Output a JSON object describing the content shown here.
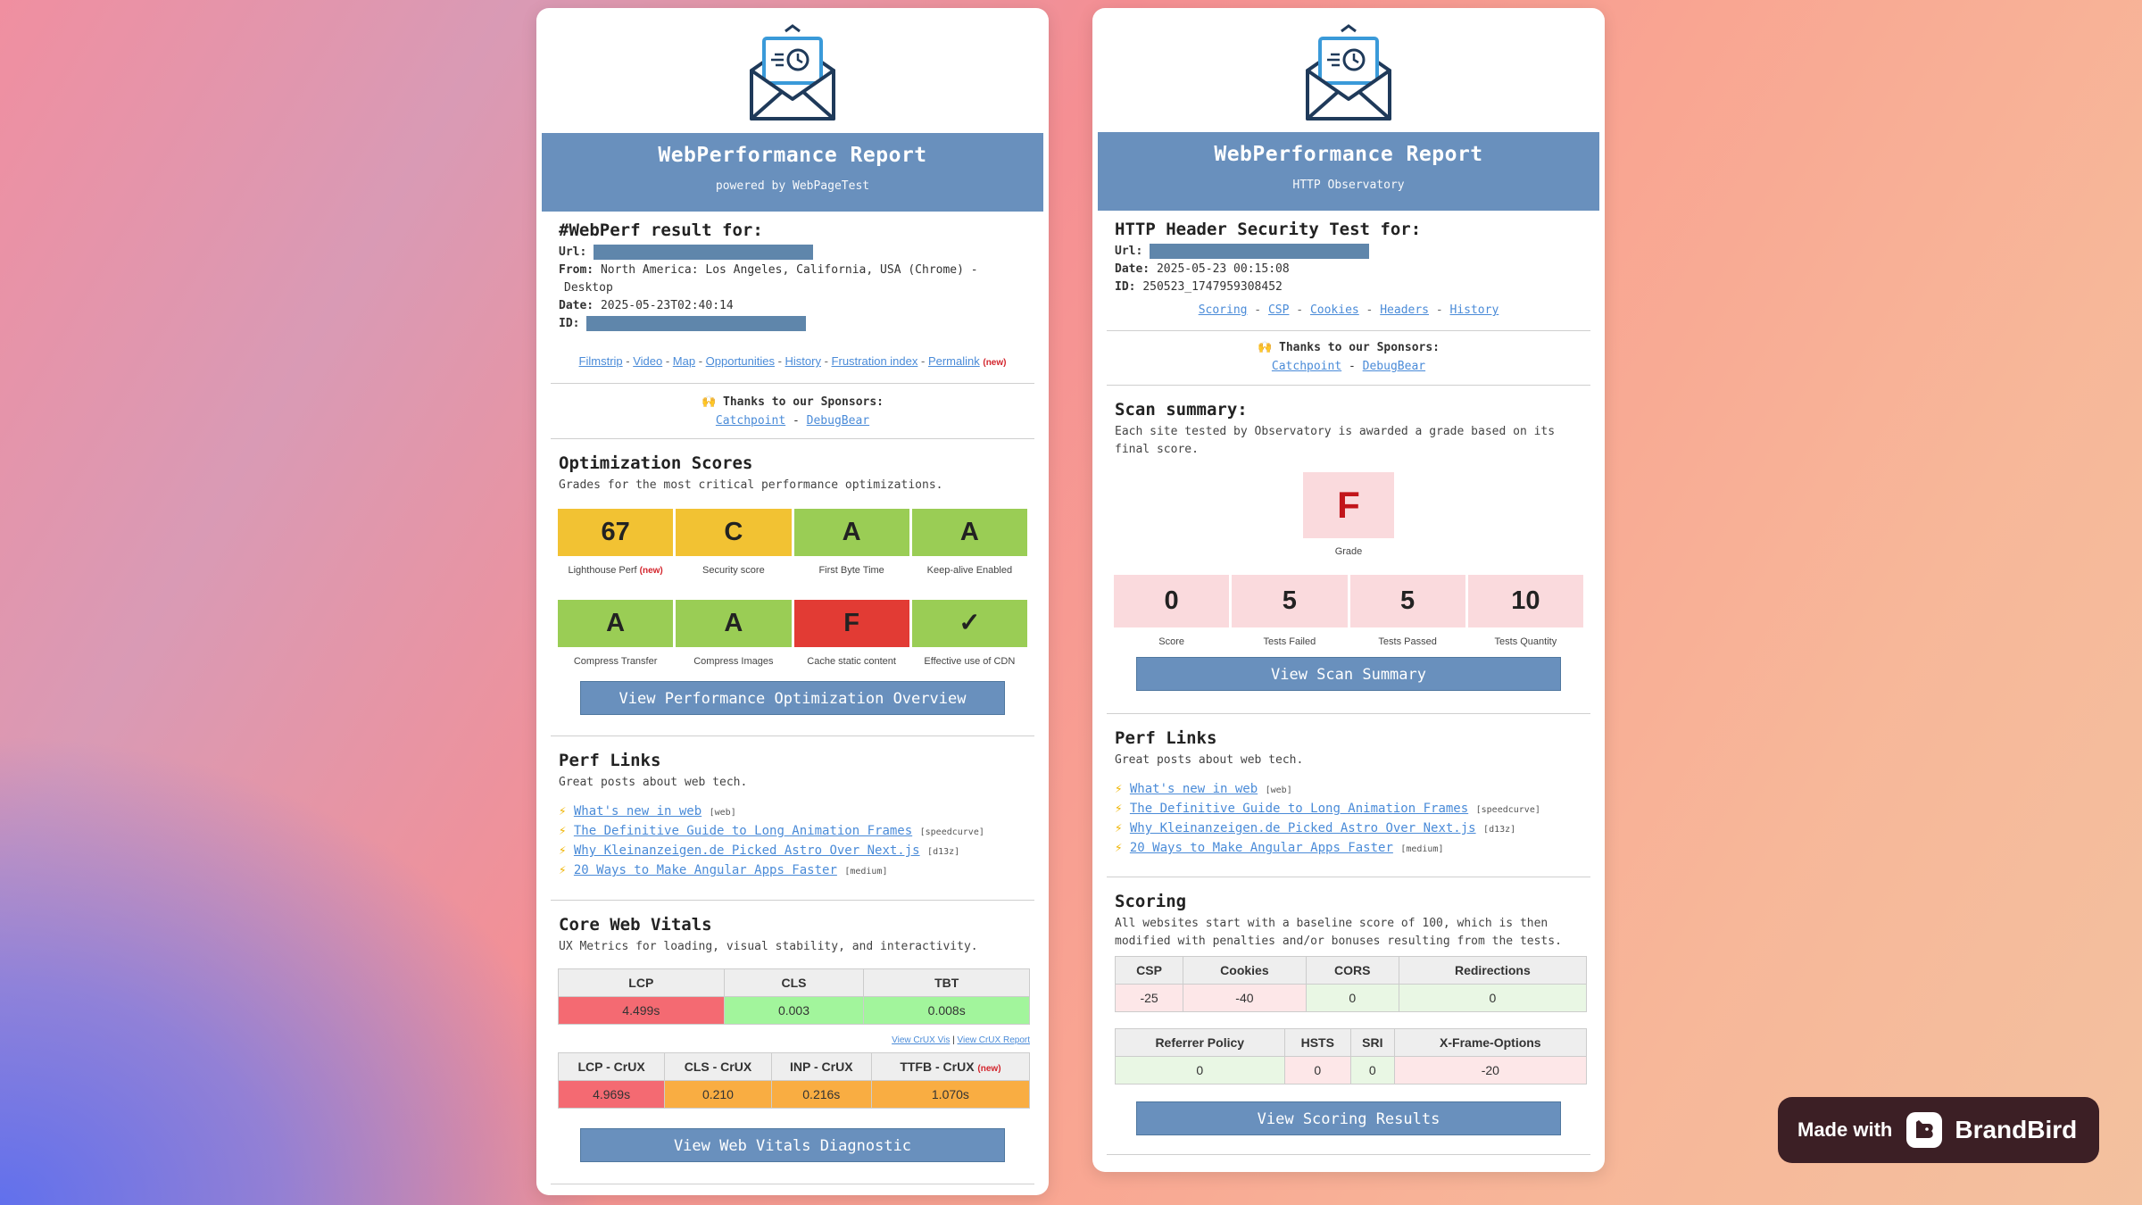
{
  "wpt": {
    "banner_title": "WebPerformance Report",
    "banner_sub": "powered by WebPageTest",
    "result_heading": "#WebPerf result for:",
    "url_label": "Url:",
    "from_label": "From:",
    "from_value": "North America: Los Angeles, California, USA (Chrome) -",
    "from_value2": "Desktop",
    "date_label": "Date:",
    "date_value": "2025-05-23T02:40:14",
    "id_label": "ID:",
    "links": [
      "Filmstrip",
      "Video",
      "Map",
      "Opportunities",
      "History",
      "Frustration index",
      "Permalink"
    ],
    "new_tag": "(new)",
    "sponsors_title": "🙌 Thanks to our Sponsors:",
    "sponsor1": "Catchpoint",
    "sponsor2": "DebugBear",
    "opt_heading": "Optimization Scores",
    "opt_sub": "Grades for the most critical performance optimizations.",
    "grades_row1": [
      {
        "value": "67",
        "label": "Lighthouse Perf",
        "color": "#f2c233"
      },
      {
        "value": "C",
        "label": "Security score",
        "color": "#f2c233"
      },
      {
        "value": "A",
        "label": "First Byte Time",
        "color": "#9acd55"
      },
      {
        "value": "A",
        "label": "Keep-alive Enabled",
        "color": "#9acd55"
      }
    ],
    "grades_row2": [
      {
        "value": "A",
        "label": "Compress Transfer",
        "color": "#9acd55"
      },
      {
        "value": "A",
        "label": "Compress Images",
        "color": "#9acd55"
      },
      {
        "value": "F",
        "label": "Cache static content",
        "color": "#e23b34"
      },
      {
        "value": "✓",
        "label": "Effective use of CDN",
        "color": "#9acd55"
      }
    ],
    "opt_button": "View Performance Optimization Overview",
    "perf_heading": "Perf Links",
    "perf_sub": "Great posts about web tech.",
    "perf_links": [
      {
        "title": "What's new in web",
        "tag": "[web]"
      },
      {
        "title": "The Definitive Guide to Long Animation Frames",
        "tag": "[speedcurve]"
      },
      {
        "title": "Why Kleinanzeigen.de Picked Astro Over Next.js",
        "tag": "[d13z]"
      },
      {
        "title": "20 Ways to Make Angular Apps Faster",
        "tag": "[medium]"
      }
    ],
    "cwv_heading": "Core Web Vitals",
    "cwv_sub": "UX Metrics for loading, visual stability, and interactivity.",
    "cwv_headers": [
      "LCP",
      "CLS",
      "TBT"
    ],
    "cwv_values": [
      "4.499s",
      "0.003",
      "0.008s"
    ],
    "crux_vis": "View CrUX Vis",
    "crux_report": "View CrUX Report",
    "crux_headers": [
      "LCP - CrUX",
      "CLS - CrUX",
      "INP - CrUX",
      "TTFB - CrUX"
    ],
    "crux_values": [
      "4.969s",
      "0.210",
      "0.216s",
      "1.070s"
    ],
    "cwv_button": "View Web Vitals Diagnostic"
  },
  "obs": {
    "banner_title": "WebPerformance Report",
    "banner_sub": "HTTP Observatory",
    "heading": "HTTP Header Security Test for:",
    "url_label": "Url:",
    "date_label": "Date:",
    "date_value": "2025-05-23 00:15:08",
    "id_label": "ID:",
    "id_value": "250523_1747959308452",
    "links": [
      "Scoring",
      "CSP",
      "Cookies",
      "Headers",
      "History"
    ],
    "sponsors_title": "🙌 Thanks to our Sponsors:",
    "sponsor1": "Catchpoint",
    "sponsor2": "DebugBear",
    "scan_heading": "Scan summary:",
    "scan_sub": "Each site tested by Observatory is awarded a grade based on its final score.",
    "grade_value": "F",
    "grade_label": "Grade",
    "stats": [
      {
        "value": "0",
        "label": "Score"
      },
      {
        "value": "5",
        "label": "Tests Failed"
      },
      {
        "value": "5",
        "label": "Tests Passed"
      },
      {
        "value": "10",
        "label": "Tests Quantity"
      }
    ],
    "scan_button": "View Scan Summary",
    "perf_heading": "Perf Links",
    "perf_sub": "Great posts about web tech.",
    "perf_links": [
      {
        "title": "What's new in web",
        "tag": "[web]"
      },
      {
        "title": "The Definitive Guide to Long Animation Frames",
        "tag": "[speedcurve]"
      },
      {
        "title": "Why Kleinanzeigen.de Picked Astro Over Next.js",
        "tag": "[d13z]"
      },
      {
        "title": "20 Ways to Make Angular Apps Faster",
        "tag": "[medium]"
      }
    ],
    "scoring_heading": "Scoring",
    "scoring_sub": "All websites start with a baseline score of 100, which is then modified with penalties and/or bonuses resulting from the tests.",
    "scoring_headers1": [
      "CSP",
      "Cookies",
      "CORS",
      "Redirections"
    ],
    "scoring_values1": [
      "-25",
      "-40",
      "0",
      "0"
    ],
    "scoring_headers2": [
      "Referrer Policy",
      "HSTS",
      "SRI",
      "X-Frame-Options"
    ],
    "scoring_values2": [
      "0",
      "0",
      "0",
      "-20"
    ],
    "scoring_button": "View Scoring Results"
  },
  "brand": {
    "made_with": "Made with",
    "name": "BrandBird"
  },
  "icons": {
    "logo": "envelope-clock-icon",
    "bolt": "lightning-icon"
  }
}
